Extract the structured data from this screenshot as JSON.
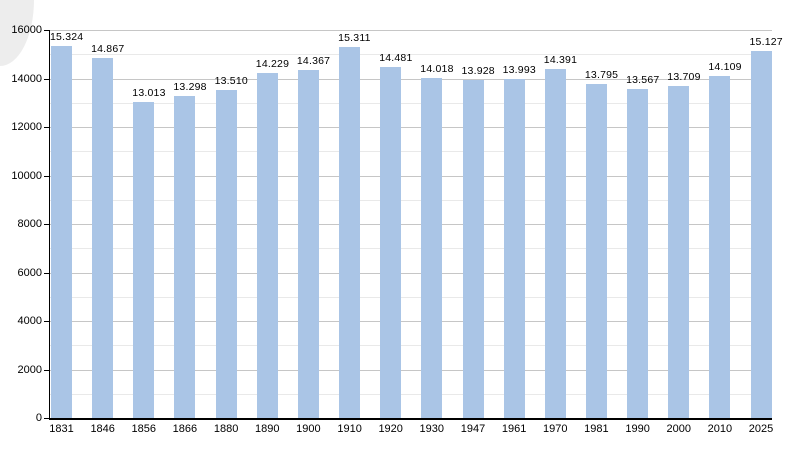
{
  "chart_data": {
    "type": "bar",
    "categories": [
      "1831",
      "1846",
      "1856",
      "1866",
      "1880",
      "1890",
      "1900",
      "1910",
      "1920",
      "1930",
      "1947",
      "1961",
      "1970",
      "1981",
      "1990",
      "2000",
      "2010",
      "2025"
    ],
    "values": [
      15324,
      14867,
      13013,
      13298,
      13510,
      14229,
      14367,
      15311,
      14481,
      14018,
      13928,
      13993,
      14391,
      13795,
      13567,
      13709,
      14109,
      15127
    ],
    "value_labels": [
      "15.324",
      "14.867",
      "13.013",
      "13.298",
      "13.510",
      "14.229",
      "14.367",
      "15.311",
      "14.481",
      "14.018",
      "13.928",
      "13.993",
      "14.391",
      "13.795",
      "13.567",
      "13.709",
      "14.109",
      "15.127"
    ],
    "title": "",
    "xlabel": "",
    "ylabel": "",
    "ylim": [
      0,
      16000
    ],
    "y_ticks": [
      0,
      2000,
      4000,
      6000,
      8000,
      10000,
      12000,
      14000,
      16000
    ],
    "y_tick_labels": [
      "0",
      "2000",
      "4000",
      "6000",
      "8000",
      "10000",
      "12000",
      "14000",
      "16000"
    ],
    "major_grid_step": 2000,
    "minor_grid_step": 1000,
    "grid": "on",
    "legend": "none",
    "colors": {
      "bar_fill": "#aac5e6",
      "major_grid": "#c6c6c6",
      "minor_grid": "#e9e9e9",
      "axis": "#000000",
      "text": "#000000",
      "background": "#ffffff",
      "corner_artifact": "#ededed"
    }
  }
}
